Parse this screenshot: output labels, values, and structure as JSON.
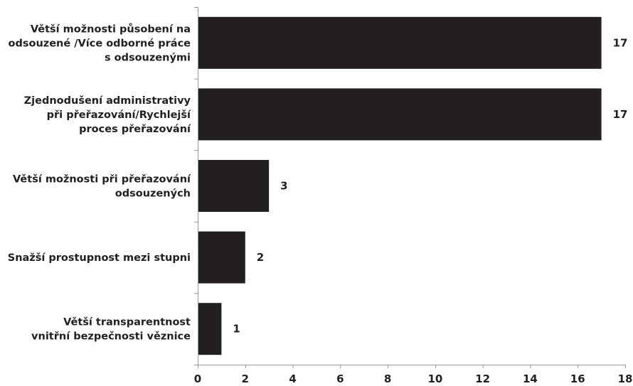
{
  "chart_data": {
    "type": "bar",
    "orientation": "horizontal",
    "categories": [
      [
        "Větší možnosti působení na",
        "odsouzené /Více odborné práce",
        "s odsouzenými"
      ],
      [
        "Zjednodušení administrativy",
        "při přeřazování/Rychlejší",
        "proces přeřazování"
      ],
      [
        "Větší možnosti při přeřazování",
        "odsouzených"
      ],
      [
        "Snažší prostupnost mezi stupni"
      ],
      [
        "Větší transparentnost",
        "vnitřní bezpečnosti věznice"
      ]
    ],
    "values": [
      17,
      17,
      3,
      2,
      1
    ],
    "data_labels": [
      "17",
      "17",
      "3",
      "2",
      "1"
    ],
    "xlim": [
      0,
      18
    ],
    "x_ticks": [
      0,
      2,
      4,
      6,
      8,
      10,
      12,
      14,
      16,
      18
    ],
    "x_tick_labels": [
      "0",
      "2",
      "4",
      "6",
      "8",
      "10",
      "12",
      "14",
      "16",
      "18"
    ],
    "grid": false,
    "colors": {
      "bar": "#231f20",
      "text": "#231f20",
      "axis": "#9a9a9a"
    }
  }
}
